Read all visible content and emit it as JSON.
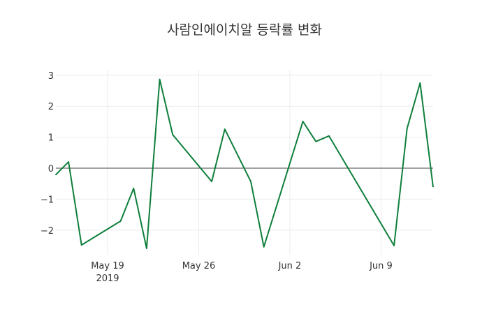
{
  "chart_data": {
    "type": "line",
    "title": "사람인에이치알 등락률 변화",
    "xlabel": "",
    "ylabel": "",
    "x": [
      "2019-05-15",
      "2019-05-16",
      "2019-05-17",
      "2019-05-20",
      "2019-05-21",
      "2019-05-22",
      "2019-05-23",
      "2019-05-24",
      "2019-05-27",
      "2019-05-28",
      "2019-05-30",
      "2019-05-31",
      "2019-06-03",
      "2019-06-04",
      "2019-06-05",
      "2019-06-10",
      "2019-06-11",
      "2019-06-12",
      "2019-06-13"
    ],
    "series": [
      {
        "name": "등락률",
        "color": "#0e7f3b",
        "values": [
          -0.22,
          0.2,
          -2.48,
          -1.71,
          -0.65,
          -2.59,
          2.87,
          1.08,
          -0.43,
          1.26,
          -0.43,
          -2.54,
          1.51,
          0.86,
          1.04,
          -2.5,
          1.28,
          2.75,
          -0.61
        ]
      }
    ],
    "yticks": [
      3,
      2,
      1,
      0,
      -1,
      -2
    ],
    "ytick_labels": [
      "3",
      "2",
      "1",
      "0",
      "−1",
      "−2"
    ],
    "xticks": [
      "2019-05-19",
      "2019-05-26",
      "2019-06-02",
      "2019-06-09"
    ],
    "xtick_labels": [
      "May 19\n2019",
      "May 26",
      "Jun 2",
      "Jun 9"
    ],
    "ylim": [
      -2.8,
      3.2
    ],
    "grid": true,
    "legend": "none"
  },
  "page": {
    "title": "사람인에이치알 등락률 변화"
  }
}
